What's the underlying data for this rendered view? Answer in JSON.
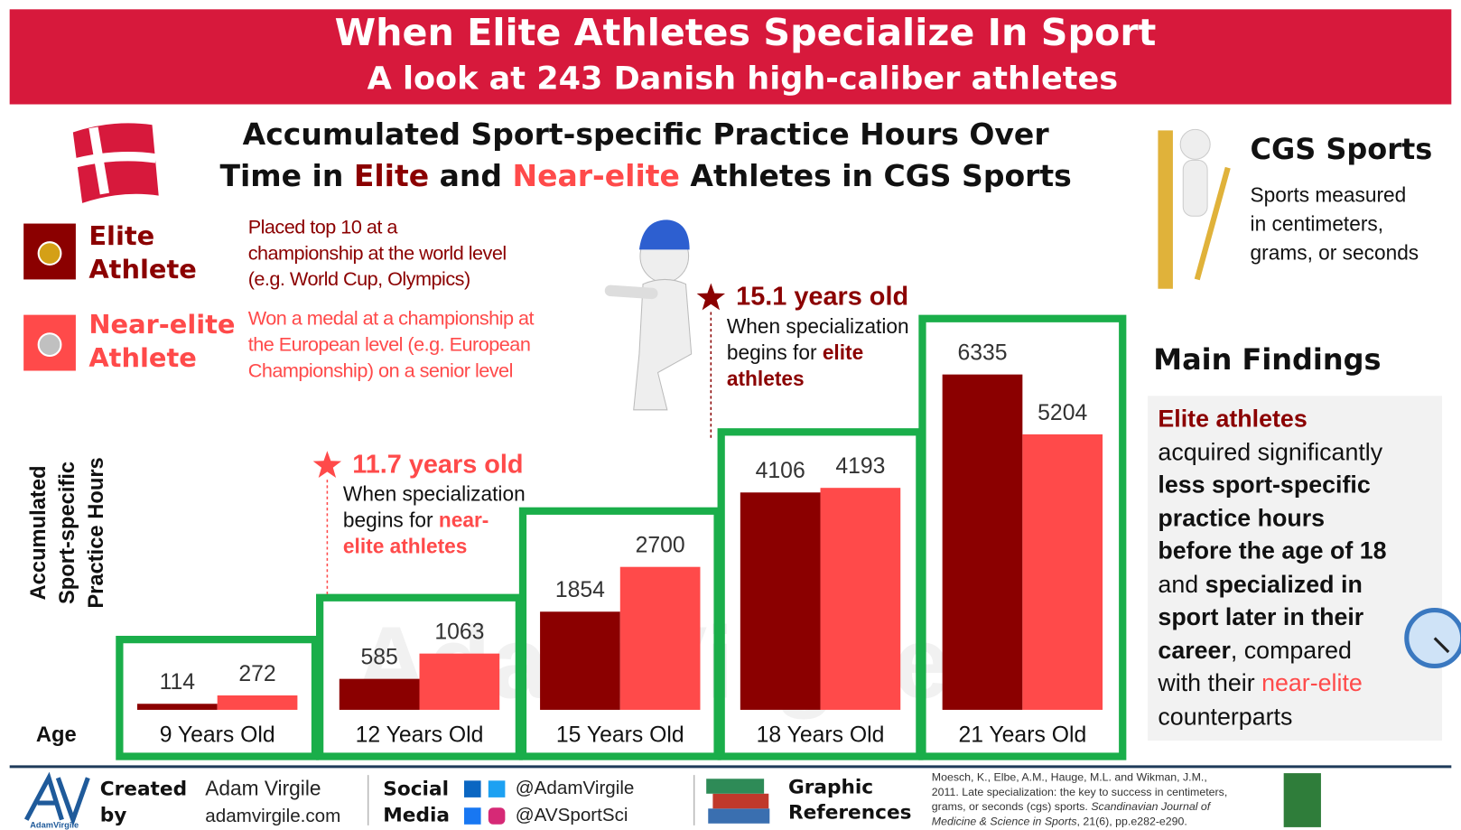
{
  "header": {
    "title": "When Elite Athletes Specialize In Sport",
    "subtitle": "A look at 243 Danish high-caliber athletes"
  },
  "chart_data": {
    "type": "bar",
    "title": [
      "Accumulated Sport-specific Practice Hours Over",
      "Time in ",
      "Elite",
      " and ",
      "Near-elite",
      " Athletes in CGS Sports"
    ],
    "y_label": [
      "Accumulated",
      "Sport-specific",
      "Practice Hours"
    ],
    "x_label": "Age",
    "categories": [
      "9 Years Old",
      "12 Years Old",
      "15 Years Old",
      "18 Years Old",
      "21 Years Old"
    ],
    "series": [
      {
        "name": "Elite Athlete",
        "color": "#8b0000",
        "values": [
          114,
          585,
          1854,
          4106,
          6335
        ],
        "description": [
          "Placed top 10 at a",
          "championship at the world level",
          "(e.g. World Cup, Olympics)"
        ]
      },
      {
        "name": "Near-elite Athlete",
        "color": "#ff4a4a",
        "values": [
          272,
          1063,
          2700,
          4193,
          5204
        ],
        "description": [
          "Won a medal at a championship at",
          "the European level (e.g. European",
          "Championship) on a senior level"
        ]
      }
    ],
    "frame_color": "#1aae4a",
    "annotations": [
      {
        "label": "11.7 years old",
        "lines": [
          [
            "When specialization"
          ],
          [
            "begins for ",
            "near-"
          ],
          [
            "elite athletes"
          ]
        ]
      },
      {
        "label": "15.1 years old",
        "lines": [
          [
            "When specialization"
          ],
          [
            "begins for ",
            "elite"
          ],
          [
            "athletes"
          ]
        ]
      }
    ],
    "watermark": "AdamVirgile"
  },
  "side": {
    "title": "CGS Sports",
    "text": [
      "Sports measured",
      "in centimeters,",
      "grams, or seconds"
    ],
    "findings_title": "Main Findings",
    "findings": [
      [
        "Elite athletes"
      ],
      [
        "acquired significantly"
      ],
      [
        "less sport-specific"
      ],
      [
        "practice hours"
      ],
      [
        "before the age of 18"
      ],
      [
        "and ",
        "specialized in"
      ],
      [
        "sport later in their"
      ],
      [
        "career",
        ", compared"
      ],
      [
        "with their ",
        "near-elite"
      ],
      [
        "counterparts"
      ]
    ]
  },
  "footer": {
    "logo": "AdamVirgile",
    "created": [
      "Created",
      "by"
    ],
    "author": [
      "Adam Virgile",
      "adamvirgile.com"
    ],
    "social": [
      "Social",
      "Media"
    ],
    "handles": [
      "@AdamVirgile",
      "@AVSportSci"
    ],
    "graphic": [
      "Graphic",
      "References"
    ],
    "reference": [
      "Moesch, K., Elbe, A.M., Hauge, M.L. and Wikman, J.M.,",
      "2011. Late specialization: the key to success in centimeters,",
      "grams, or seconds (cgs) sports. ",
      "Scandinavian Journal of",
      "Medicine & Science in Sports",
      ", 21(6), pp.e282-e290."
    ]
  }
}
